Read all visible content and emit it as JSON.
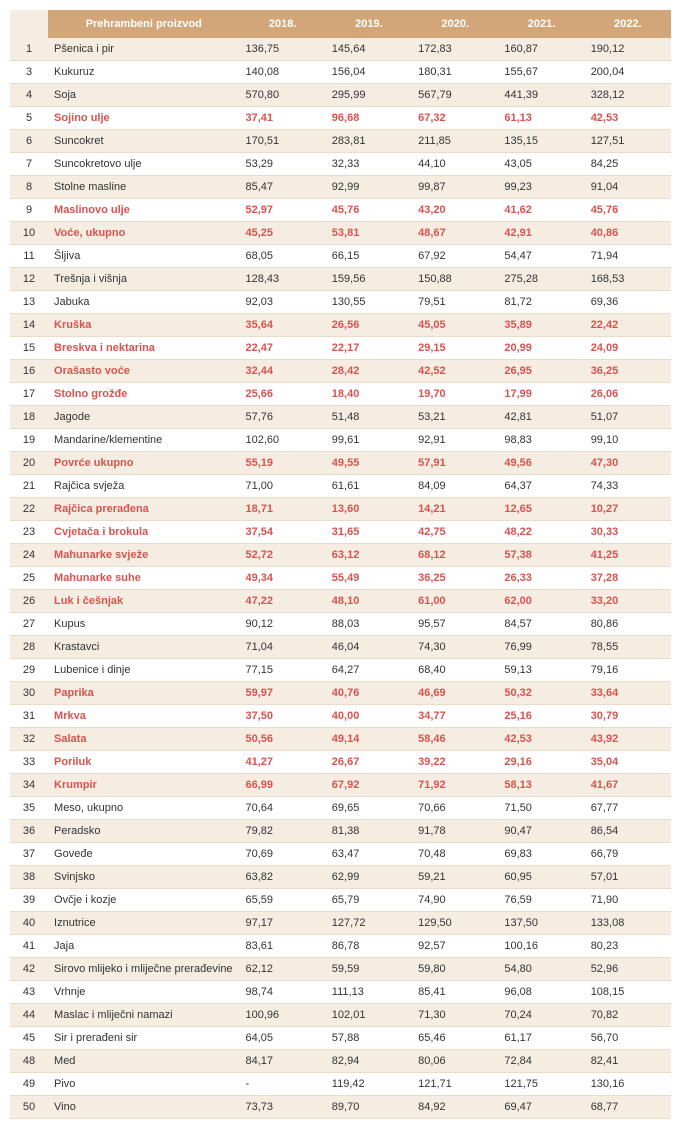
{
  "columns": [
    "",
    "Prehrambeni proizvod",
    "2018.",
    "2019.",
    "2020.",
    "2021.",
    "2022."
  ],
  "rows": [
    {
      "n": "1",
      "name": "Pšenica i pir",
      "v": [
        "136,75",
        "145,64",
        "172,83",
        "160,87",
        "190,12"
      ],
      "h": false
    },
    {
      "n": "3",
      "name": "Kukuruz",
      "v": [
        "140,08",
        "156,04",
        "180,31",
        "155,67",
        "200,04"
      ],
      "h": false
    },
    {
      "n": "4",
      "name": "Soja",
      "v": [
        "570,80",
        "295,99",
        "567,79",
        "441,39",
        "328,12"
      ],
      "h": false
    },
    {
      "n": "5",
      "name": "Sojino ulje",
      "v": [
        "37,41",
        "96,68",
        "67,32",
        "61,13",
        "42,53"
      ],
      "h": true
    },
    {
      "n": "6",
      "name": "Suncokret",
      "v": [
        "170,51",
        "283,81",
        "211,85",
        "135,15",
        "127,51"
      ],
      "h": false
    },
    {
      "n": "7",
      "name": "Suncokretovo ulje",
      "v": [
        "53,29",
        "32,33",
        "44,10",
        "43,05",
        "84,25"
      ],
      "h": false
    },
    {
      "n": "8",
      "name": "Stolne masline",
      "v": [
        "85,47",
        "92,99",
        "99,87",
        "99,23",
        "91,04"
      ],
      "h": false
    },
    {
      "n": "9",
      "name": "Maslinovo ulje",
      "v": [
        "52,97",
        "45,76",
        "43,20",
        "41,62",
        "45,76"
      ],
      "h": true
    },
    {
      "n": "10",
      "name": "Voće, ukupno",
      "v": [
        "45,25",
        "53,81",
        "48,67",
        "42,91",
        "40,86"
      ],
      "h": true
    },
    {
      "n": "11",
      "name": "Šljiva",
      "v": [
        "68,05",
        "66,15",
        "67,92",
        "54,47",
        "71,94"
      ],
      "h": false
    },
    {
      "n": "12",
      "name": "Trešnja i višnja",
      "v": [
        "128,43",
        "159,56",
        "150,88",
        "275,28",
        "168,53"
      ],
      "h": false
    },
    {
      "n": "13",
      "name": "Jabuka",
      "v": [
        "92,03",
        "130,55",
        "79,51",
        "81,72",
        "69,36"
      ],
      "h": false
    },
    {
      "n": "14",
      "name": "Kruška",
      "v": [
        "35,64",
        "26,56",
        "45,05",
        "35,89",
        "22,42"
      ],
      "h": true
    },
    {
      "n": "15",
      "name": "Breskva i nektarina",
      "v": [
        "22,47",
        "22,17",
        "29,15",
        "20,99",
        "24,09"
      ],
      "h": true
    },
    {
      "n": "16",
      "name": "Orašasto voće",
      "v": [
        "32,44",
        "28,42",
        "42,52",
        "26,95",
        "36,25"
      ],
      "h": true
    },
    {
      "n": "17",
      "name": "Stolno grožđe",
      "v": [
        "25,66",
        "18,40",
        "19,70",
        "17,99",
        "26,06"
      ],
      "h": true
    },
    {
      "n": "18",
      "name": "Jagode",
      "v": [
        "57,76",
        "51,48",
        "53,21",
        "42,81",
        "51,07"
      ],
      "h": false
    },
    {
      "n": "19",
      "name": "Mandarine/klementine",
      "v": [
        "102,60",
        "99,61",
        "92,91",
        "98,83",
        "99,10"
      ],
      "h": false
    },
    {
      "n": "20",
      "name": "Povrće ukupno",
      "v": [
        "55,19",
        "49,55",
        "57,91",
        "49,56",
        "47,30"
      ],
      "h": true
    },
    {
      "n": "21",
      "name": "Rajčica svježa",
      "v": [
        "71,00",
        "61,61",
        "84,09",
        "64,37",
        "74,33"
      ],
      "h": false
    },
    {
      "n": "22",
      "name": "Rajčica prerađena",
      "v": [
        "18,71",
        "13,60",
        "14,21",
        "12,65",
        "10,27"
      ],
      "h": true
    },
    {
      "n": "23",
      "name": "Cvjetača i brokula",
      "v": [
        "37,54",
        "31,65",
        "42,75",
        "48,22",
        "30,33"
      ],
      "h": true
    },
    {
      "n": "24",
      "name": "Mahunarke svježe",
      "v": [
        "52,72",
        "63,12",
        "68,12",
        "57,38",
        "41,25"
      ],
      "h": true
    },
    {
      "n": "25",
      "name": "Mahunarke suhe",
      "v": [
        "49,34",
        "55,49",
        "36,25",
        "26,33",
        "37,28"
      ],
      "h": true
    },
    {
      "n": "26",
      "name": "Luk i češnjak",
      "v": [
        "47,22",
        "48,10",
        "61,00",
        "62,00",
        "33,20"
      ],
      "h": true
    },
    {
      "n": "27",
      "name": "Kupus",
      "v": [
        "90,12",
        "88,03",
        "95,57",
        "84,57",
        "80,86"
      ],
      "h": false
    },
    {
      "n": "28",
      "name": "Krastavci",
      "v": [
        "71,04",
        "46,04",
        "74,30",
        "76,99",
        "78,55"
      ],
      "h": false
    },
    {
      "n": "29",
      "name": "Lubenice i dinje",
      "v": [
        "77,15",
        "64,27",
        "68,40",
        "59,13",
        "79,16"
      ],
      "h": false
    },
    {
      "n": "30",
      "name": "Paprika",
      "v": [
        "59,97",
        "40,76",
        "46,69",
        "50,32",
        "33,64"
      ],
      "h": true
    },
    {
      "n": "31",
      "name": "Mrkva",
      "v": [
        "37,50",
        "40,00",
        "34,77",
        "25,16",
        "30,79"
      ],
      "h": true
    },
    {
      "n": "32",
      "name": "Salata",
      "v": [
        "50,56",
        "49,14",
        "58,46",
        "42,53",
        "43,92"
      ],
      "h": true
    },
    {
      "n": "33",
      "name": "Poriluk",
      "v": [
        "41,27",
        "26,67",
        "39,22",
        "29,16",
        "35,04"
      ],
      "h": true
    },
    {
      "n": "34",
      "name": "Krumpir",
      "v": [
        "66,99",
        "67,92",
        "71,92",
        "58,13",
        "41,67"
      ],
      "h": true
    },
    {
      "n": "35",
      "name": "Meso, ukupno",
      "v": [
        "70,64",
        "69,65",
        "70,66",
        "71,50",
        "67,77"
      ],
      "h": false
    },
    {
      "n": "36",
      "name": "Peradsko",
      "v": [
        "79,82",
        "81,38",
        "91,78",
        "90,47",
        "86,54"
      ],
      "h": false
    },
    {
      "n": "37",
      "name": "Goveđe",
      "v": [
        "70,69",
        "63,47",
        "70,48",
        "69,83",
        "66,79"
      ],
      "h": false
    },
    {
      "n": "38",
      "name": "Svinjsko",
      "v": [
        "63,82",
        "62,99",
        "59,21",
        "60,95",
        "57,01"
      ],
      "h": false
    },
    {
      "n": "39",
      "name": "Ovčje i kozje",
      "v": [
        "65,59",
        "65,79",
        "74,90",
        "76,59",
        "71,90"
      ],
      "h": false
    },
    {
      "n": "40",
      "name": "Iznutrice",
      "v": [
        "97,17",
        "127,72",
        "129,50",
        "137,50",
        "133,08"
      ],
      "h": false
    },
    {
      "n": "41",
      "name": "Jaja",
      "v": [
        "83,61",
        "86,78",
        "92,57",
        "100,16",
        "80,23"
      ],
      "h": false
    },
    {
      "n": "42",
      "name": "Sirovo mlijeko i mliječne prerađevine",
      "v": [
        "62,12",
        "59,59",
        "59,80",
        "54,80",
        "52,96"
      ],
      "h": false
    },
    {
      "n": "43",
      "name": "Vrhnje",
      "v": [
        "98,74",
        "111,13",
        "85,41",
        "96,08",
        "108,15"
      ],
      "h": false
    },
    {
      "n": "44",
      "name": "Maslac i mliječni namazi",
      "v": [
        "100,96",
        "102,01",
        "71,30",
        "70,24",
        "70,82"
      ],
      "h": false
    },
    {
      "n": "45",
      "name": "Sir i prerađeni sir",
      "v": [
        "64,05",
        "57,88",
        "65,46",
        "61,17",
        "56,70"
      ],
      "h": false
    },
    {
      "n": "48",
      "name": "Med",
      "v": [
        "84,17",
        "82,94",
        "80,06",
        "72,84",
        "82,41"
      ],
      "h": false
    },
    {
      "n": "49",
      "name": "Pivo",
      "v": [
        "-",
        "119,42",
        "121,71",
        "121,75",
        "130,16"
      ],
      "h": false
    },
    {
      "n": "50",
      "name": "Vino",
      "v": [
        "73,73",
        "89,70",
        "84,92",
        "69,47",
        "68,77"
      ],
      "h": false
    }
  ]
}
